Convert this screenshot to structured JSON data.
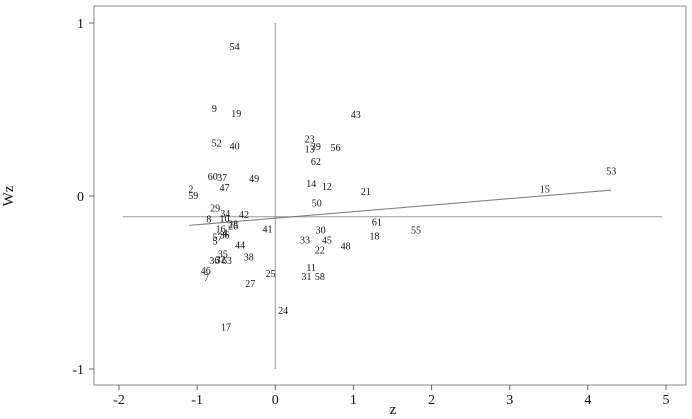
{
  "chart_data": {
    "type": "scatter",
    "xlabel": "z",
    "ylabel": "Wz",
    "xlim": [
      -2,
      5
    ],
    "ylim": [
      -1,
      1
    ],
    "xticks": [
      -2,
      -1,
      0,
      1,
      2,
      3,
      4,
      5
    ],
    "yticks": [
      -1,
      0,
      1
    ],
    "reference_lines": {
      "x": 0,
      "y": -0.12
    },
    "trend_line": {
      "x": [
        -1.1,
        4.3
      ],
      "y": [
        -0.17,
        0.034
      ]
    },
    "points": [
      {
        "label": "54",
        "x": -0.52,
        "y": 0.864
      },
      {
        "label": "9",
        "x": -0.78,
        "y": 0.506
      },
      {
        "label": "19",
        "x": -0.5,
        "y": 0.477
      },
      {
        "label": "43",
        "x": 1.03,
        "y": 0.471
      },
      {
        "label": "52",
        "x": -0.75,
        "y": 0.307
      },
      {
        "label": "40",
        "x": -0.52,
        "y": 0.29
      },
      {
        "label": "23",
        "x": 0.44,
        "y": 0.33
      },
      {
        "label": "13",
        "x": 0.44,
        "y": 0.273
      },
      {
        "label": "39",
        "x": 0.52,
        "y": 0.285
      },
      {
        "label": "56",
        "x": 0.77,
        "y": 0.28
      },
      {
        "label": "62",
        "x": 0.52,
        "y": 0.198
      },
      {
        "label": "60",
        "x": -0.8,
        "y": 0.113
      },
      {
        "label": "37",
        "x": -0.68,
        "y": 0.107
      },
      {
        "label": "49",
        "x": -0.27,
        "y": 0.101
      },
      {
        "label": "14",
        "x": 0.46,
        "y": 0.072
      },
      {
        "label": "12",
        "x": 0.66,
        "y": 0.054
      },
      {
        "label": "47",
        "x": -0.65,
        "y": 0.048
      },
      {
        "label": "2",
        "x": -1.08,
        "y": 0.04
      },
      {
        "label": "59",
        "x": -1.05,
        "y": 0.003
      },
      {
        "label": "21",
        "x": 1.16,
        "y": 0.025
      },
      {
        "label": "53",
        "x": 4.3,
        "y": 0.145
      },
      {
        "label": "15",
        "x": 3.45,
        "y": 0.04
      },
      {
        "label": "50",
        "x": 0.53,
        "y": -0.04
      },
      {
        "label": "29",
        "x": -0.77,
        "y": -0.07
      },
      {
        "label": "34",
        "x": -0.64,
        "y": -0.1
      },
      {
        "label": "42",
        "x": -0.4,
        "y": -0.106
      },
      {
        "label": "8",
        "x": -0.85,
        "y": -0.133
      },
      {
        "label": "10",
        "x": -0.65,
        "y": -0.13
      },
      {
        "label": "61",
        "x": 1.3,
        "y": -0.15
      },
      {
        "label": "28",
        "x": -0.54,
        "y": -0.162
      },
      {
        "label": "26",
        "x": -0.54,
        "y": -0.174
      },
      {
        "label": "16",
        "x": -0.7,
        "y": -0.191
      },
      {
        "label": "41",
        "x": -0.1,
        "y": -0.191
      },
      {
        "label": "30",
        "x": 0.58,
        "y": -0.197
      },
      {
        "label": "55",
        "x": 1.8,
        "y": -0.197
      },
      {
        "label": "4",
        "x": -0.64,
        "y": -0.214
      },
      {
        "label": "3",
        "x": -0.68,
        "y": -0.226
      },
      {
        "label": "6",
        "x": -0.62,
        "y": -0.226
      },
      {
        "label": "57",
        "x": -0.74,
        "y": -0.238
      },
      {
        "label": "18",
        "x": 1.27,
        "y": -0.232
      },
      {
        "label": "5",
        "x": -0.77,
        "y": -0.261
      },
      {
        "label": "33",
        "x": 0.38,
        "y": -0.255
      },
      {
        "label": "45",
        "x": 0.66,
        "y": -0.255
      },
      {
        "label": "44",
        "x": -0.45,
        "y": -0.284
      },
      {
        "label": "48",
        "x": 0.9,
        "y": -0.29
      },
      {
        "label": "22",
        "x": 0.57,
        "y": -0.313
      },
      {
        "label": "35",
        "x": -0.67,
        "y": -0.336
      },
      {
        "label": "38",
        "x": -0.34,
        "y": -0.354
      },
      {
        "label": "32",
        "x": -0.7,
        "y": -0.366
      },
      {
        "label": "36",
        "x": -0.78,
        "y": -0.372
      },
      {
        "label": "63",
        "x": -0.62,
        "y": -0.372
      },
      {
        "label": "11",
        "x": 0.46,
        "y": -0.412
      },
      {
        "label": "46",
        "x": -0.89,
        "y": -0.43
      },
      {
        "label": "25",
        "x": -0.06,
        "y": -0.449
      },
      {
        "label": "7",
        "x": -0.88,
        "y": -0.472
      },
      {
        "label": "31",
        "x": 0.4,
        "y": -0.466
      },
      {
        "label": "58",
        "x": 0.57,
        "y": -0.466
      },
      {
        "label": "27",
        "x": -0.32,
        "y": -0.507
      },
      {
        "label": "24",
        "x": 0.1,
        "y": -0.663
      },
      {
        "label": "17",
        "x": -0.63,
        "y": -0.756
      }
    ]
  }
}
